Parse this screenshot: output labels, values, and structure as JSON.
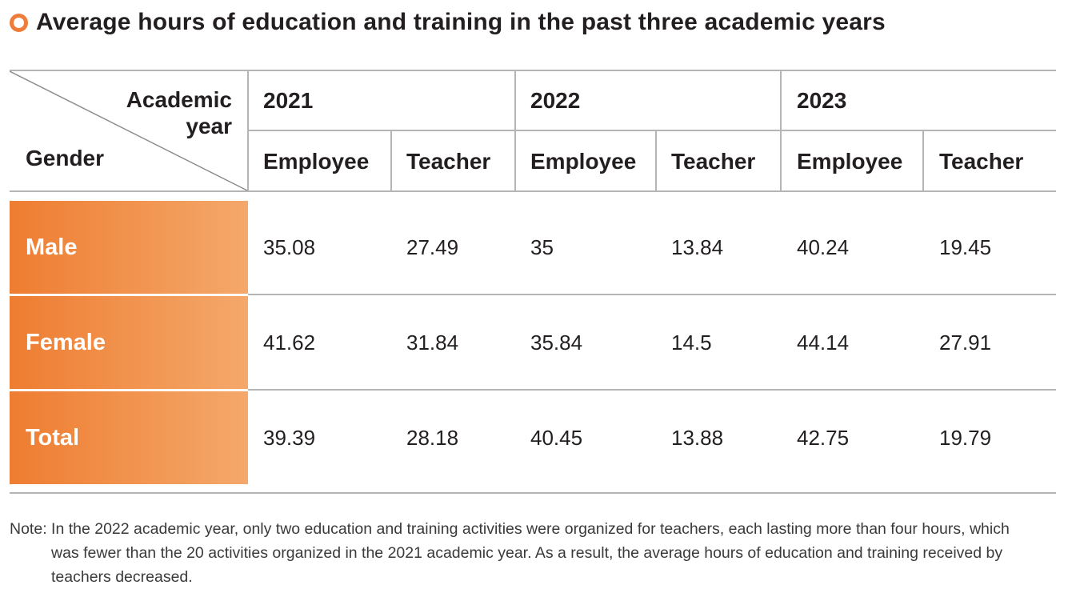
{
  "title": "Average hours of education and training in the past three academic years",
  "header": {
    "corner_top": "Academic",
    "corner_top2": "year",
    "corner_left": "Gender",
    "years": [
      "2021",
      "2022",
      "2023"
    ],
    "subcols": [
      "Employee",
      "Teacher",
      "Employee",
      "Teacher",
      "Employee",
      "Teacher"
    ]
  },
  "rows": [
    {
      "label": "Male",
      "values": [
        "35.08",
        "27.49",
        "35",
        "13.84",
        "40.24",
        "19.45"
      ]
    },
    {
      "label": "Female",
      "values": [
        "41.62",
        "31.84",
        "35.84",
        "14.5",
        "44.14",
        "27.91"
      ]
    },
    {
      "label": "Total",
      "values": [
        "39.39",
        "28.18",
        "40.45",
        "13.88",
        "42.75",
        "19.79"
      ]
    }
  ],
  "note": {
    "label": "Note:",
    "line1": "In the 2022 academic year, only two education and training activities were organized for teachers, each lasting more than four hours, which",
    "line2": "was fewer than the 20 activities organized in the 2021 academic year. As a result, the average hours of education and training received by",
    "line3": "teachers decreased."
  },
  "colors": {
    "accent": "#ee7d31",
    "accent_light": "#f4a86b",
    "rule": "#b5b5b5"
  }
}
